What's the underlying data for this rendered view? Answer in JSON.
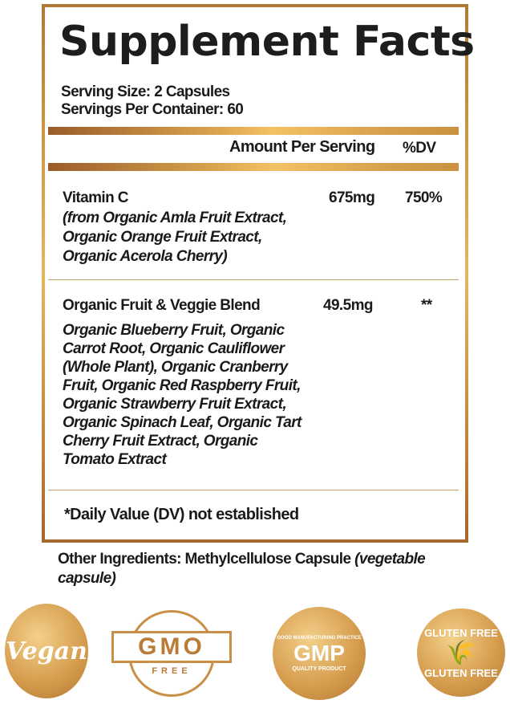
{
  "title": "Supplement Facts",
  "serving_size": "Serving Size: 2 Capsules",
  "servings_per_container": "Servings Per Container: 60",
  "header": {
    "amount": "Amount Per Serving",
    "dv": "%DV"
  },
  "rows": [
    {
      "name": "Vitamin C",
      "sub": [
        "(from Organic Amla Fruit Extract,",
        "Organic Orange Fruit Extract,",
        "Organic Acerola Cherry)"
      ],
      "amount": "675mg",
      "dv": "750%"
    },
    {
      "name": "Organic Fruit & Veggie Blend",
      "sub": [
        " Organic Blueberry Fruit, Organic",
        "Carrot Root, Organic Cauliflower",
        "(Whole Plant), Organic Cranberry",
        "Fruit, Organic Red Raspberry Fruit,",
        "Organic Strawberry Fruit Extract,",
        "Organic Spinach Leaf, Organic Tart",
        "Cherry Fruit Extract, Organic",
        "Tomato Extract"
      ],
      "amount": "49.5mg",
      "dv": "**"
    }
  ],
  "footnote": "*Daily Value (DV) not established",
  "other": {
    "label": "Other Ingredients: Methylcellulose Capsule ",
    "italic": "(vegetable",
    "italic2": "capsule)"
  },
  "badges": {
    "vegan": "Vegan",
    "gmo": "GMO",
    "gmo_sub": "FREE",
    "gmp": "GMP",
    "gmp_top": "GOOD MANUFACTURING PRACTICE",
    "gmp_bottom": "QUALITY PRODUCT",
    "gluten": "GLUTEN FREE"
  }
}
